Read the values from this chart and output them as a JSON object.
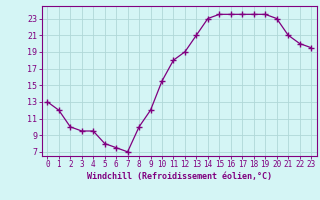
{
  "x": [
    0,
    1,
    2,
    3,
    4,
    5,
    6,
    7,
    8,
    9,
    10,
    11,
    12,
    13,
    14,
    15,
    16,
    17,
    18,
    19,
    20,
    21,
    22,
    23
  ],
  "y": [
    13,
    12,
    10,
    9.5,
    9.5,
    8,
    7.5,
    7,
    10,
    12,
    15.5,
    18,
    19,
    21,
    23,
    23.5,
    23.5,
    23.5,
    23.5,
    23.5,
    23,
    21,
    20,
    19.5
  ],
  "line_color": "#800080",
  "marker": "+",
  "bg_color": "#d4f5f5",
  "grid_color": "#b0d8d8",
  "xlabel": "Windchill (Refroidissement éolien,°C)",
  "yticks": [
    7,
    9,
    11,
    13,
    15,
    17,
    19,
    21,
    23
  ],
  "xticks": [
    0,
    1,
    2,
    3,
    4,
    5,
    6,
    7,
    8,
    9,
    10,
    11,
    12,
    13,
    14,
    15,
    16,
    17,
    18,
    19,
    20,
    21,
    22,
    23
  ],
  "xlim": [
    -0.5,
    23.5
  ],
  "ylim": [
    6.5,
    24.5
  ],
  "axis_color": "#800080",
  "tick_color": "#800080",
  "label_color": "#800080",
  "tick_fontsize": 5.5,
  "xlabel_fontsize": 6.0
}
